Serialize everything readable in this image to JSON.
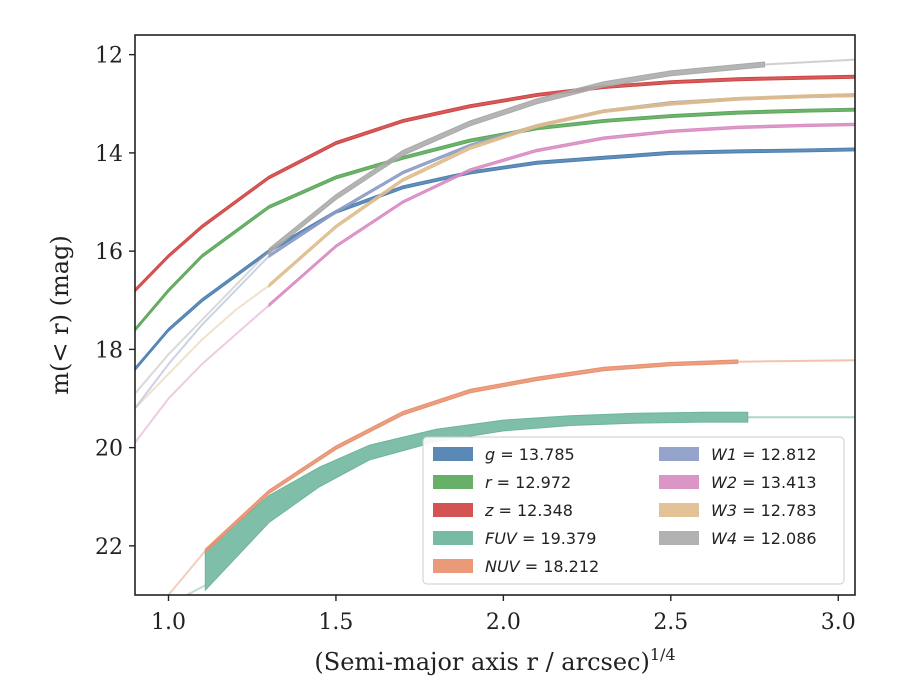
{
  "chart_data": {
    "type": "line",
    "xlabel": "(Semi-major axis r / arcsec)",
    "xlabel_exponent": "1/4",
    "ylabel": "m(< r) (mag)",
    "xlim": [
      0.9,
      3.05
    ],
    "ylim": [
      23.0,
      11.6
    ],
    "y_inverted": true,
    "xticks": [
      1.0,
      1.5,
      2.0,
      2.5,
      3.0
    ],
    "xtick_labels": [
      "1.0",
      "1.5",
      "2.0",
      "2.5",
      "3.0"
    ],
    "yticks": [
      12,
      14,
      16,
      18,
      20,
      22
    ],
    "ytick_labels": [
      "12",
      "14",
      "16",
      "18",
      "20",
      "22"
    ],
    "legend_location": "lower-right",
    "legend_columns": 2,
    "series": [
      {
        "name": "g = 13.785",
        "band": "g",
        "value": "13.785",
        "color": "#4c7fb0",
        "width": 0.06,
        "points": [
          [
            0.9,
            18.4
          ],
          [
            1.0,
            17.6
          ],
          [
            1.1,
            17.0
          ],
          [
            1.3,
            16.0
          ],
          [
            1.5,
            15.2
          ],
          [
            1.7,
            14.7
          ],
          [
            1.9,
            14.4
          ],
          [
            2.1,
            14.2
          ],
          [
            2.3,
            14.1
          ],
          [
            2.5,
            14.0
          ],
          [
            2.7,
            13.97
          ],
          [
            2.9,
            13.95
          ],
          [
            3.05,
            13.93
          ]
        ]
      },
      {
        "name": "r = 12.972",
        "band": "r",
        "value": "12.972",
        "color": "#5ba85a",
        "width": 0.06,
        "points": [
          [
            0.9,
            17.6
          ],
          [
            1.0,
            16.8
          ],
          [
            1.1,
            16.1
          ],
          [
            1.3,
            15.1
          ],
          [
            1.5,
            14.5
          ],
          [
            1.7,
            14.1
          ],
          [
            1.9,
            13.75
          ],
          [
            2.1,
            13.5
          ],
          [
            2.3,
            13.35
          ],
          [
            2.5,
            13.25
          ],
          [
            2.7,
            13.18
          ],
          [
            2.9,
            13.14
          ],
          [
            3.05,
            13.12
          ]
        ]
      },
      {
        "name": "z = 12.348",
        "band": "z",
        "value": "12.348",
        "color": "#d04545",
        "width": 0.06,
        "points": [
          [
            0.9,
            16.8
          ],
          [
            1.0,
            16.1
          ],
          [
            1.1,
            15.5
          ],
          [
            1.3,
            14.5
          ],
          [
            1.5,
            13.8
          ],
          [
            1.7,
            13.35
          ],
          [
            1.9,
            13.05
          ],
          [
            2.1,
            12.82
          ],
          [
            2.3,
            12.66
          ],
          [
            2.5,
            12.56
          ],
          [
            2.7,
            12.5
          ],
          [
            2.9,
            12.47
          ],
          [
            3.05,
            12.45
          ]
        ]
      },
      {
        "name": "FUV = 19.379",
        "band": "FUV",
        "value": "19.379",
        "color": "#6db59c",
        "points": [
          [
            1.11,
            22.5
          ],
          [
            1.3,
            21.25
          ],
          [
            1.45,
            20.6
          ],
          [
            1.6,
            20.1
          ],
          [
            1.8,
            19.75
          ],
          [
            2.0,
            19.55
          ],
          [
            2.2,
            19.45
          ],
          [
            2.4,
            19.4
          ],
          [
            2.6,
            19.38
          ],
          [
            2.73,
            19.38
          ]
        ],
        "widths": [
          0.8,
          0.55,
          0.4,
          0.3,
          0.25,
          0.22,
          0.2,
          0.2,
          0.2,
          0.2
        ],
        "extension": [
          [
            0.9,
            23.6
          ],
          [
            1.0,
            23.2
          ],
          [
            1.11,
            22.8
          ]
        ],
        "tail": [
          [
            2.73,
            19.38
          ],
          [
            3.05,
            19.38
          ]
        ]
      },
      {
        "name": "NUV = 18.212",
        "band": "NUV",
        "value": "18.212",
        "color": "#e8916e",
        "width": 0.07,
        "points": [
          [
            1.11,
            22.1
          ],
          [
            1.3,
            20.9
          ],
          [
            1.5,
            20.0
          ],
          [
            1.7,
            19.3
          ],
          [
            1.9,
            18.85
          ],
          [
            2.1,
            18.6
          ],
          [
            2.3,
            18.4
          ],
          [
            2.5,
            18.3
          ],
          [
            2.7,
            18.25
          ]
        ],
        "extension": [
          [
            0.9,
            24.0
          ],
          [
            1.0,
            23.0
          ],
          [
            1.11,
            22.1
          ]
        ],
        "tail": [
          [
            2.7,
            18.25
          ],
          [
            3.05,
            18.22
          ]
        ]
      },
      {
        "name": "W1 = 12.812",
        "band": "W1",
        "value": "12.812",
        "color": "#8c9cc6",
        "width": 0.05,
        "points": [
          [
            1.3,
            16.1
          ],
          [
            1.5,
            15.2
          ],
          [
            1.7,
            14.4
          ],
          [
            1.9,
            13.85
          ],
          [
            2.1,
            13.45
          ],
          [
            2.3,
            13.15
          ],
          [
            2.5,
            12.98
          ],
          [
            2.7,
            12.9
          ],
          [
            2.9,
            12.85
          ],
          [
            3.05,
            12.83
          ]
        ],
        "extension": [
          [
            0.9,
            19.2
          ],
          [
            1.0,
            18.3
          ],
          [
            1.1,
            17.5
          ],
          [
            1.2,
            16.8
          ],
          [
            1.3,
            16.1
          ]
        ]
      },
      {
        "name": "W2 = 13.413",
        "band": "W2",
        "value": "13.413",
        "color": "#d98cc2",
        "width": 0.05,
        "points": [
          [
            1.3,
            17.1
          ],
          [
            1.5,
            15.9
          ],
          [
            1.7,
            15.0
          ],
          [
            1.9,
            14.35
          ],
          [
            2.1,
            13.95
          ],
          [
            2.3,
            13.7
          ],
          [
            2.5,
            13.56
          ],
          [
            2.7,
            13.48
          ],
          [
            2.9,
            13.44
          ],
          [
            3.05,
            13.42
          ]
        ],
        "extension": [
          [
            0.9,
            19.9
          ],
          [
            1.0,
            19.0
          ],
          [
            1.1,
            18.3
          ],
          [
            1.2,
            17.7
          ],
          [
            1.3,
            17.1
          ]
        ]
      },
      {
        "name": "W3 = 12.783",
        "band": "W3",
        "value": "12.783",
        "color": "#dfbd8d",
        "width": 0.06,
        "points": [
          [
            1.3,
            16.7
          ],
          [
            1.5,
            15.5
          ],
          [
            1.7,
            14.55
          ],
          [
            1.9,
            13.9
          ],
          [
            2.1,
            13.45
          ],
          [
            2.3,
            13.15
          ],
          [
            2.5,
            13.0
          ],
          [
            2.7,
            12.9
          ],
          [
            2.9,
            12.85
          ],
          [
            3.05,
            12.82
          ]
        ],
        "extension": [
          [
            0.9,
            19.2
          ],
          [
            1.0,
            18.5
          ],
          [
            1.1,
            17.8
          ],
          [
            1.2,
            17.2
          ],
          [
            1.3,
            16.7
          ]
        ]
      },
      {
        "name": "W4 = 12.086",
        "band": "W4",
        "value": "12.086",
        "color": "#aaaaaa",
        "width": 0.1,
        "points": [
          [
            1.3,
            16.0
          ],
          [
            1.5,
            14.9
          ],
          [
            1.7,
            14.0
          ],
          [
            1.9,
            13.4
          ],
          [
            2.1,
            12.95
          ],
          [
            2.3,
            12.6
          ],
          [
            2.5,
            12.38
          ],
          [
            2.78,
            12.2
          ]
        ],
        "extension": [
          [
            0.9,
            18.9
          ],
          [
            1.0,
            18.1
          ],
          [
            1.1,
            17.4
          ],
          [
            1.2,
            16.7
          ],
          [
            1.3,
            16.0
          ]
        ],
        "tail": [
          [
            2.78,
            12.2
          ],
          [
            3.05,
            12.1
          ]
        ]
      }
    ]
  }
}
